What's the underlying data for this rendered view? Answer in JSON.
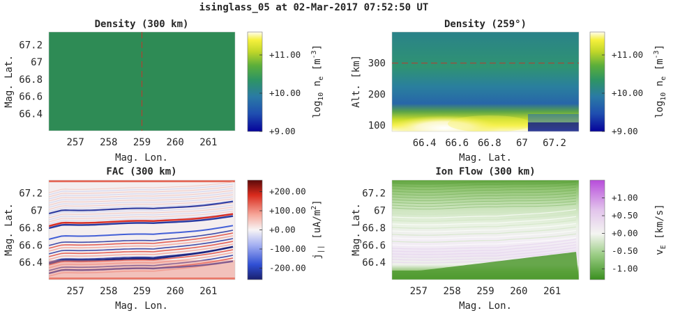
{
  "figure": {
    "suptitle": "isinglass_05 at 02-Mar-2017 07:52:50 UT"
  },
  "chart_data": [
    {
      "id": "density-300km",
      "type": "heatmap",
      "title": "Density (300 km)",
      "xlabel": "Mag. Lon.",
      "ylabel": "Mag. Lat.",
      "xlim": [
        256.2,
        261.8
      ],
      "ylim": [
        66.2,
        67.35
      ],
      "xticks": [
        257,
        258,
        259,
        260,
        261
      ],
      "yticks": [
        66.4,
        66.6,
        66.8,
        67,
        67.2
      ],
      "ytick_labels": [
        "66.4",
        "66.6",
        "66.8",
        "67",
        "67.2"
      ],
      "field_value_log10": 10.35,
      "cut_line": {
        "axis": "x",
        "value": 259,
        "style": "dashed",
        "color": "#c0392b"
      },
      "colorbar": {
        "label": "log10 ne [m-3]",
        "label_parts": {
          "base": "log",
          "base_sub": "10",
          "var": "n",
          "var_sub": "e",
          "unit": "[m",
          "unit_sup": "-3",
          "unit_end": "]"
        },
        "range": [
          9.0,
          11.6
        ],
        "ticks": [
          9.0,
          10.0,
          11.0
        ],
        "tick_labels": [
          "+9.00",
          "+10.00",
          "+11.00"
        ],
        "colormap": "blue-green-yellow"
      }
    },
    {
      "id": "density-259deg",
      "type": "heatmap",
      "title": "Density (259°)",
      "xlabel": "Mag. Lat.",
      "ylabel": "Alt. [km]",
      "xlim": [
        66.2,
        67.35
      ],
      "ylim": [
        80,
        400
      ],
      "xticks": [
        66.4,
        66.6,
        66.8,
        67,
        67.2
      ],
      "xtick_labels": [
        "66.4",
        "66.6",
        "66.8",
        "67",
        "67.2"
      ],
      "yticks": [
        100,
        200,
        300
      ],
      "cut_line": {
        "axis": "y",
        "value": 300,
        "style": "dashed",
        "color": "#c0392b"
      },
      "colorbar": {
        "label": "log10 ne [m-3]",
        "label_parts": {
          "base": "log",
          "base_sub": "10",
          "var": "n",
          "var_sub": "e",
          "unit": "[m",
          "unit_sup": "-3",
          "unit_end": "]"
        },
        "range": [
          9.0,
          11.6
        ],
        "ticks": [
          9.0,
          10.0,
          11.0
        ],
        "tick_labels": [
          "+9.00",
          "+10.00",
          "+11.00"
        ],
        "colormap": "blue-green-yellow"
      }
    },
    {
      "id": "fac-300km",
      "type": "heatmap",
      "title": "FAC (300 km)",
      "xlabel": "Mag. Lon.",
      "ylabel": "Mag. Lat.",
      "xlim": [
        256.2,
        261.8
      ],
      "ylim": [
        66.2,
        67.35
      ],
      "xticks": [
        257,
        258,
        259,
        260,
        261
      ],
      "yticks": [
        66.4,
        66.6,
        66.8,
        67,
        67.2
      ],
      "ytick_labels": [
        "66.4",
        "66.6",
        "66.8",
        "67",
        "67.2"
      ],
      "colorbar": {
        "label": "j|| [uA/m2]",
        "label_parts": {
          "var": "j",
          "var_sub": "||",
          "unit": "[uA/m",
          "unit_sup": "2",
          "unit_end": "]"
        },
        "range": [
          -260,
          260
        ],
        "ticks": [
          -200,
          -100,
          0,
          100,
          200
        ],
        "tick_labels": [
          "-200.00",
          "-100.00",
          "+0.00",
          "+100.00",
          "+200.00"
        ],
        "colormap": "blue-white-red"
      }
    },
    {
      "id": "ion-flow-300km",
      "type": "heatmap",
      "title": "Ion Flow (300 km)",
      "xlabel": "Mag. Lon.",
      "ylabel": "Mag. Lat.",
      "xlim": [
        256.2,
        261.8
      ],
      "ylim": [
        66.2,
        67.35
      ],
      "xticks": [
        257,
        258,
        259,
        260,
        261
      ],
      "yticks": [
        66.4,
        66.6,
        66.8,
        67,
        67.2
      ],
      "ytick_labels": [
        "66.4",
        "66.6",
        "66.8",
        "67",
        "67.2"
      ],
      "colorbar": {
        "label": "vE [km/s]",
        "label_parts": {
          "var": "v",
          "var_sub": "E",
          "unit": "[km/s]"
        },
        "range": [
          -1.3,
          1.5
        ],
        "ticks": [
          -1.0,
          -0.5,
          0.0,
          0.5,
          1.0
        ],
        "tick_labels": [
          "-1.00",
          "-0.50",
          "+0.00",
          "+0.50",
          "+1.00"
        ],
        "colormap": "green-white-purple"
      }
    }
  ]
}
